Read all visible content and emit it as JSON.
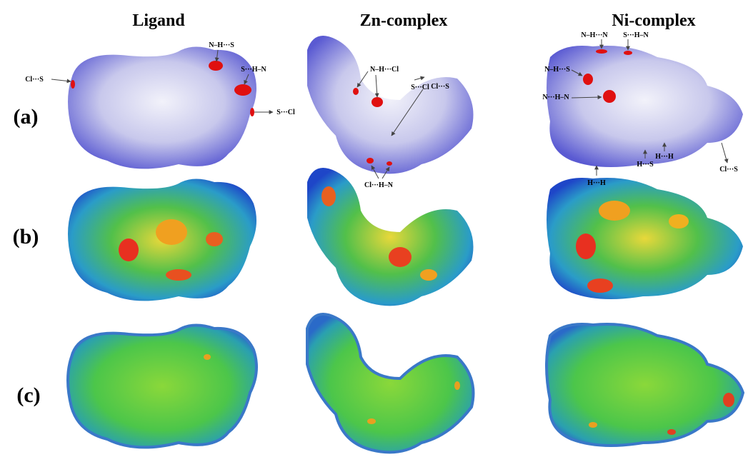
{
  "columns": [
    "Ligand",
    "Zn-complex",
    "Ni-complex"
  ],
  "rows": [
    "(a)",
    "(b)",
    "(c)"
  ],
  "annotations": [
    [
      "N–H···S",
      "S···H–N",
      "Cl···S",
      "S···Cl"
    ],
    [
      "N–H···Cl",
      "S···Cl",
      "Cl···S",
      "Cl···H–N"
    ],
    [
      "N–H···N",
      "S···H–N",
      "N–H···S",
      "N···H–N",
      "H···S",
      "H···H",
      "Cl···S",
      "H···H"
    ]
  ]
}
